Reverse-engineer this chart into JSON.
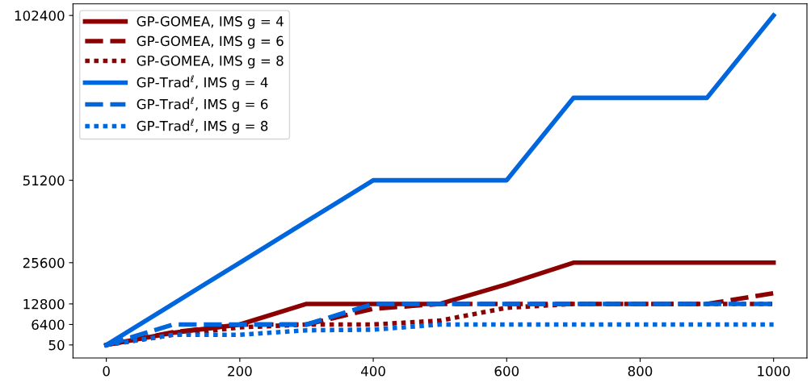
{
  "chart_data": {
    "type": "line",
    "x": [
      0,
      100,
      200,
      300,
      400,
      500,
      600,
      700,
      800,
      900,
      1000
    ],
    "xlim": [
      -50,
      1050
    ],
    "xticks": [
      0,
      200,
      400,
      600,
      800,
      1000
    ],
    "ylim": [
      -4000,
      106000
    ],
    "yticks": [
      50,
      6400,
      12800,
      25600,
      51200,
      102400
    ],
    "grid": false,
    "legend": "top left",
    "marker": "none",
    "series": [
      {
        "name": "GP-GOMEA, IMS g = 4",
        "color": "#8b0000",
        "line_style": "solid",
        "values": [
          50,
          3800,
          6400,
          12800,
          12800,
          12800,
          18900,
          25600,
          25600,
          25600,
          25600
        ]
      },
      {
        "name": "GP-GOMEA, IMS g = 6",
        "color": "#8b0000",
        "line_style": "dashed",
        "values": [
          50,
          4000,
          6400,
          6400,
          11300,
          12800,
          12800,
          12800,
          12800,
          12800,
          16100
        ]
      },
      {
        "name": "GP-GOMEA, IMS g = 8",
        "color": "#8b0000",
        "line_style": "dotted",
        "values": [
          50,
          3200,
          5500,
          6400,
          6400,
          7600,
          11600,
          12800,
          12800,
          12800,
          12800
        ]
      },
      {
        "name": "GP-Trad$^{ℓ}$, IMS g = 4",
        "color": "#0066dd",
        "line_style": "solid",
        "values": [
          50,
          12800,
          25600,
          38400,
          51200,
          51200,
          51200,
          76800,
          76800,
          76800,
          102400
        ]
      },
      {
        "name": "GP-Trad$^{ℓ}$, IMS g = 6",
        "color": "#0066dd",
        "line_style": "dashed",
        "values": [
          50,
          6400,
          6400,
          6400,
          12800,
          12800,
          12800,
          12800,
          12800,
          12800,
          12800
        ]
      },
      {
        "name": "GP-Trad$^{ℓ}$, IMS g = 8",
        "color": "#0066dd",
        "line_style": "dotted",
        "values": [
          50,
          3200,
          3200,
          4600,
          4800,
          6400,
          6400,
          6400,
          6400,
          6400,
          6400
        ]
      }
    ]
  }
}
